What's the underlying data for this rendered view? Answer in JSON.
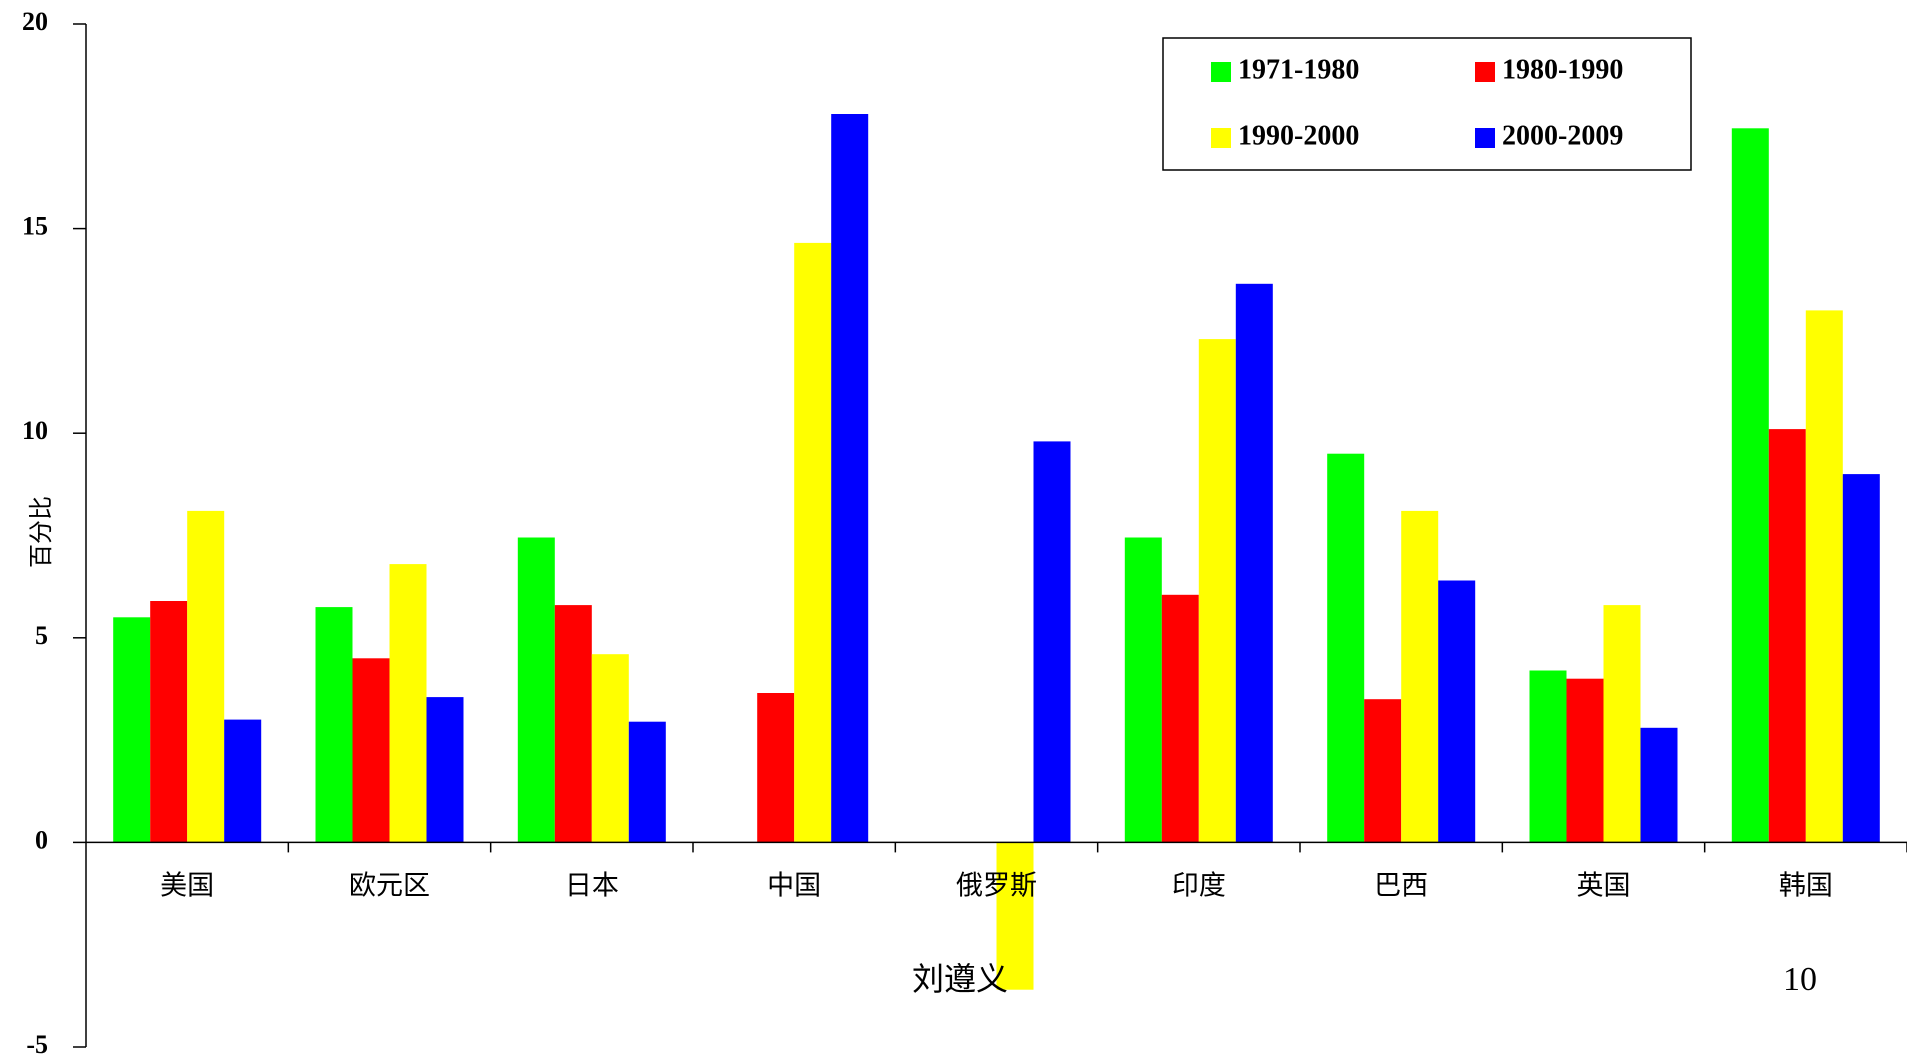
{
  "chart_data": {
    "type": "bar",
    "ylabel": "百分比",
    "xlabel": "",
    "ylim": [
      -5,
      20
    ],
    "yticks": [
      20,
      15,
      10,
      5,
      0,
      -5
    ],
    "categories": [
      "美国",
      "欧元区",
      "日本",
      "中国",
      "俄罗斯",
      "印度",
      "巴西",
      "英国",
      "韩国"
    ],
    "series": [
      {
        "name": "1971-1980",
        "color": "#00ff00",
        "values": [
          5.5,
          5.75,
          7.45,
          null,
          null,
          7.45,
          9.5,
          4.2,
          17.45
        ]
      },
      {
        "name": "1980-1990",
        "color": "#ff0000",
        "values": [
          5.9,
          4.5,
          5.8,
          3.65,
          null,
          6.05,
          3.5,
          4.0,
          10.1
        ]
      },
      {
        "name": "1990-2000",
        "color": "#ffff00",
        "values": [
          8.1,
          6.8,
          4.6,
          14.65,
          -3.6,
          12.3,
          8.1,
          5.8,
          13.0
        ]
      },
      {
        "name": "2000-2009",
        "color": "#0000ff",
        "values": [
          3.0,
          3.55,
          2.95,
          17.8,
          9.8,
          13.65,
          6.4,
          2.8,
          9.0
        ]
      }
    ],
    "legend_position": "top-right",
    "grid": false
  },
  "footer": {
    "author": "刘遵义",
    "page_number": "10"
  }
}
